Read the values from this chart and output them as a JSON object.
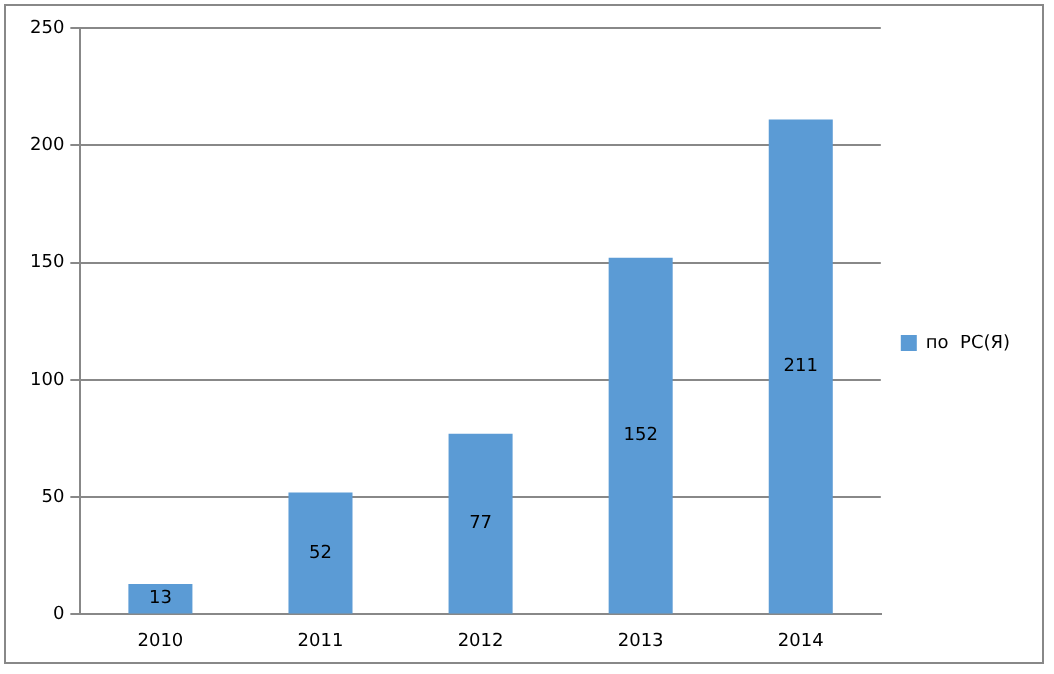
{
  "chart_data": {
    "type": "bar",
    "categories": [
      "2010",
      "2011",
      "2012",
      "2013",
      "2014"
    ],
    "series": [
      {
        "name": "по  РС(Я)",
        "color": "#5b9bd5",
        "values": [
          13,
          52,
          77,
          152,
          211
        ]
      }
    ],
    "ylim": [
      0,
      250
    ],
    "yticks": [
      0,
      50,
      100,
      150,
      200,
      250
    ],
    "grid": "y",
    "legend": "right",
    "data_labels": true
  }
}
